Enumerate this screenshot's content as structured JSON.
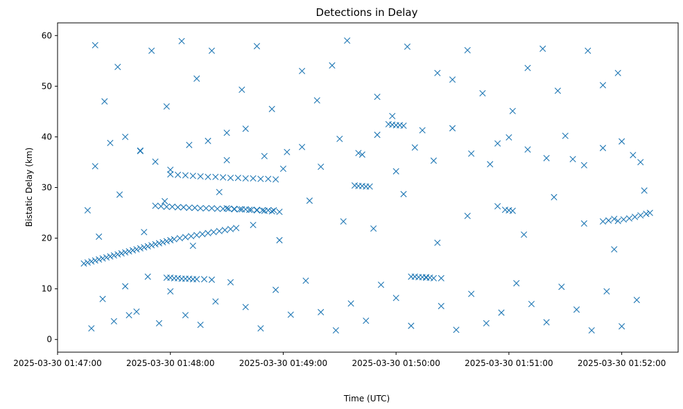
{
  "chart_data": {
    "type": "scatter",
    "title": "Detections in Delay",
    "xlabel": "Time (UTC)",
    "ylabel": "Bistatic Delay (km)",
    "x_ticks": [
      "2025-03-30 01:47:00",
      "2025-03-30 01:48:00",
      "2025-03-30 01:49:00",
      "2025-03-30 01:50:00",
      "2025-03-30 01:51:00",
      "2025-03-30 01:52:00"
    ],
    "y_ticks": [
      0,
      10,
      20,
      30,
      40,
      50,
      60
    ],
    "xlim": [
      "2025-03-30 01:47:00",
      "2025-03-30 01:52:30"
    ],
    "ylim": [
      -2.5,
      62.5
    ],
    "grid": false,
    "marker": "x",
    "color": "#1f77b4",
    "series": [
      {
        "x": [
          "01:47:14",
          "01:47:16",
          "01:47:18",
          "01:47:20",
          "01:47:22",
          "01:47:24",
          "01:47:26",
          "01:47:28",
          "01:47:30",
          "01:47:32",
          "01:47:34",
          "01:47:36",
          "01:47:38",
          "01:47:40",
          "01:47:42",
          "01:47:44",
          "01:47:46",
          "01:47:48",
          "01:47:50",
          "01:47:52",
          "01:47:54",
          "01:47:56",
          "01:47:58",
          "01:48:00",
          "01:48:02",
          "01:48:05",
          "01:48:08",
          "01:48:11",
          "01:48:14",
          "01:48:17",
          "01:48:20",
          "01:48:23",
          "01:48:26",
          "01:48:29",
          "01:48:32",
          "01:48:35",
          "01:47:52",
          "01:47:55",
          "01:47:58",
          "01:48:01",
          "01:48:04",
          "01:48:07",
          "01:48:10",
          "01:48:13",
          "01:48:16",
          "01:48:19",
          "01:48:22",
          "01:48:25",
          "01:48:28",
          "01:48:31",
          "01:48:34",
          "01:48:37",
          "01:48:40",
          "01:48:43",
          "01:48:46",
          "01:48:49",
          "01:48:52",
          "01:48:55",
          "01:48:00",
          "01:48:04",
          "01:48:08",
          "01:48:12",
          "01:48:16",
          "01:48:20",
          "01:48:24",
          "01:48:28",
          "01:48:32",
          "01:48:36",
          "01:48:40",
          "01:48:44",
          "01:48:48",
          "01:48:52",
          "01:48:56",
          "01:48:30",
          "01:48:34",
          "01:48:38",
          "01:48:42",
          "01:48:46",
          "01:48:50",
          "01:48:54",
          "01:48:58",
          "01:47:58",
          "01:48:00",
          "01:48:02",
          "01:48:04",
          "01:48:06",
          "01:48:08",
          "01:48:10",
          "01:48:12",
          "01:48:14",
          "01:48:18",
          "01:48:22",
          "01:49:38",
          "01:49:40",
          "01:49:42",
          "01:49:44",
          "01:49:46",
          "01:49:56",
          "01:49:58",
          "01:50:00",
          "01:50:02",
          "01:50:04",
          "01:50:08",
          "01:50:10",
          "01:50:12",
          "01:50:14",
          "01:50:16",
          "01:50:18",
          "01:50:20",
          "01:50:24",
          "01:51:58",
          "01:52:01",
          "01:52:04",
          "01:52:07",
          "01:52:10",
          "01:52:13",
          "01:52:15",
          "01:51:50",
          "01:51:53",
          "01:51:56",
          "01:50:58",
          "01:51:00",
          "01:51:02",
          "01:47:16",
          "01:47:20",
          "01:47:25",
          "01:47:32",
          "01:47:38",
          "01:47:44",
          "01:47:50",
          "01:47:58",
          "01:48:06",
          "01:48:14",
          "01:48:22",
          "01:48:30",
          "01:48:38",
          "01:48:46",
          "01:48:54",
          "01:49:02",
          "01:49:10",
          "01:49:18",
          "01:49:26",
          "01:49:34",
          "01:49:42",
          "01:49:50",
          "01:49:58",
          "01:50:06",
          "01:50:14",
          "01:50:22",
          "01:50:30",
          "01:50:38",
          "01:50:46",
          "01:50:54",
          "01:51:02",
          "01:51:10",
          "01:51:18",
          "01:51:26",
          "01:51:34",
          "01:51:42",
          "01:51:50",
          "01:51:58",
          "01:52:06",
          "01:47:18",
          "01:47:24",
          "01:47:30",
          "01:47:36",
          "01:47:42",
          "01:47:48",
          "01:47:54",
          "01:48:00",
          "01:48:08",
          "01:48:16",
          "01:48:24",
          "01:48:32",
          "01:48:40",
          "01:48:48",
          "01:48:56",
          "01:49:04",
          "01:49:12",
          "01:49:20",
          "01:49:28",
          "01:49:36",
          "01:49:44",
          "01:49:52",
          "01:50:00",
          "01:50:08",
          "01:50:16",
          "01:50:24",
          "01:50:32",
          "01:50:40",
          "01:50:48",
          "01:50:56",
          "01:51:04",
          "01:51:12",
          "01:51:20",
          "01:51:28",
          "01:51:36",
          "01:51:44",
          "01:51:52",
          "01:52:00",
          "01:52:08",
          "01:47:20",
          "01:47:28",
          "01:47:36",
          "01:47:44",
          "01:47:52",
          "01:48:00",
          "01:48:10",
          "01:48:20",
          "01:48:30",
          "01:48:40",
          "01:48:50",
          "01:49:00",
          "01:49:10",
          "01:49:20",
          "01:49:30",
          "01:49:40",
          "01:49:50",
          "01:50:00",
          "01:50:10",
          "01:50:20",
          "01:50:30",
          "01:50:40",
          "01:50:50",
          "01:51:00",
          "01:51:10",
          "01:51:20",
          "01:51:30",
          "01:51:40",
          "01:51:50",
          "01:52:00",
          "01:52:10",
          "01:47:22",
          "01:47:33",
          "01:47:46",
          "01:47:57",
          "01:48:12",
          "01:48:26",
          "01:48:44",
          "01:48:58",
          "01:49:14",
          "01:49:32",
          "01:49:48",
          "01:50:04",
          "01:50:22",
          "01:50:38",
          "01:50:54",
          "01:51:08",
          "01:51:24",
          "01:51:40",
          "01:51:56",
          "01:52:12"
        ],
        "y": [
          15.0,
          15.2,
          15.4,
          15.6,
          15.8,
          16.0,
          16.2,
          16.4,
          16.6,
          16.8,
          17.0,
          17.2,
          17.4,
          17.6,
          17.8,
          18.0,
          18.2,
          18.4,
          18.6,
          18.8,
          19.0,
          19.2,
          19.4,
          19.6,
          19.8,
          20.0,
          20.2,
          20.4,
          20.6,
          20.8,
          21.0,
          21.2,
          21.4,
          21.6,
          21.8,
          22.0,
          26.4,
          26.3,
          26.2,
          26.2,
          26.1,
          26.1,
          26.0,
          26.0,
          25.9,
          25.9,
          25.9,
          25.8,
          25.8,
          25.8,
          25.7,
          25.7,
          25.7,
          25.6,
          25.6,
          25.5,
          25.5,
          25.5,
          32.6,
          32.5,
          32.4,
          32.3,
          32.2,
          32.1,
          32.1,
          32.0,
          31.9,
          31.9,
          31.8,
          31.8,
          31.7,
          31.7,
          31.6,
          25.9,
          25.8,
          25.7,
          25.6,
          25.5,
          25.4,
          25.3,
          25.2,
          12.2,
          12.2,
          12.1,
          12.1,
          12.0,
          12.0,
          12.0,
          11.9,
          11.9,
          11.9,
          11.8,
          30.4,
          30.3,
          30.3,
          30.2,
          30.2,
          42.5,
          42.4,
          42.3,
          42.3,
          42.2,
          12.4,
          12.4,
          12.3,
          12.3,
          12.2,
          12.2,
          12.1,
          12.1,
          23.4,
          23.7,
          23.9,
          24.2,
          24.5,
          24.8,
          25.0,
          23.3,
          23.5,
          23.8,
          25.6,
          25.5,
          25.4,
          25.5,
          58.1,
          47.0,
          53.8,
          4.8,
          37.2,
          57.0,
          46.0,
          58.9,
          51.5,
          57.0,
          40.8,
          49.3,
          57.9,
          45.5,
          37.0,
          53.0,
          47.2,
          54.1,
          59.0,
          36.5,
          47.9,
          44.1,
          57.8,
          41.3,
          52.6,
          51.3,
          57.1,
          48.6,
          38.7,
          45.1,
          53.6,
          57.4,
          49.1,
          35.6,
          57.0,
          50.2,
          52.6,
          36.4,
          2.2,
          8.0,
          3.6,
          10.5,
          5.5,
          12.4,
          3.2,
          9.5,
          4.8,
          2.9,
          7.5,
          11.3,
          6.4,
          2.2,
          9.8,
          4.9,
          11.6,
          5.4,
          1.8,
          7.1,
          3.7,
          10.8,
          8.2,
          2.7,
          12.3,
          6.6,
          1.9,
          9.0,
          3.2,
          5.3,
          11.1,
          7.0,
          3.4,
          10.4,
          5.9,
          1.8,
          9.5,
          2.6,
          7.8,
          34.2,
          38.8,
          40.0,
          37.3,
          35.1,
          33.5,
          38.4,
          39.2,
          35.4,
          41.6,
          36.2,
          33.7,
          38.0,
          34.1,
          39.6,
          36.8,
          40.4,
          33.2,
          37.9,
          35.3,
          41.7,
          36.7,
          34.6,
          39.9,
          37.5,
          35.8,
          40.2,
          34.4,
          37.8,
          39.1,
          35.0,
          20.3,
          28.6,
          21.2,
          27.3,
          18.5,
          29.1,
          22.6,
          19.6,
          27.4,
          23.3,
          21.9,
          28.7,
          19.1,
          24.4,
          26.3,
          20.7,
          28.1,
          22.9,
          17.8,
          29.4
        ]
      }
    ]
  }
}
